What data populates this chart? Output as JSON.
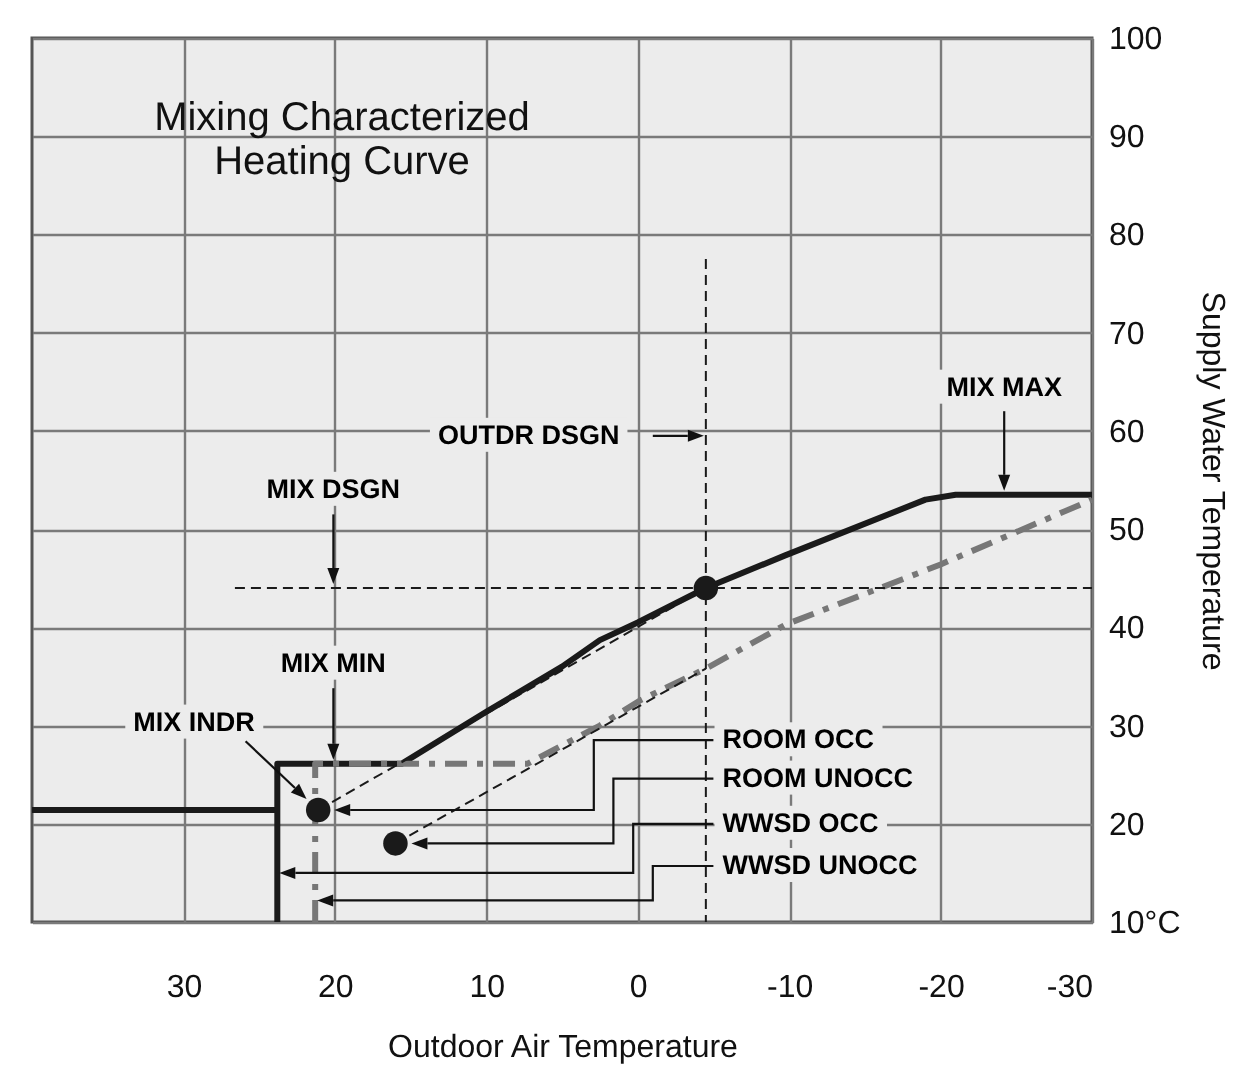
{
  "chart_data": {
    "type": "line",
    "title": "Mixing Characterized Heating Curve",
    "xlabel": "Outdoor Air Temperature",
    "ylabel": "Supply Water Temperature",
    "xlim": [
      40,
      -30
    ],
    "xticks": [
      30,
      20,
      10,
      0,
      -10,
      -20,
      -30
    ],
    "ylim": [
      10,
      100
    ],
    "yticks": [
      {
        "value": 10,
        "label": "10°C"
      },
      20,
      30,
      40,
      50,
      60,
      70,
      80,
      90,
      100
    ],
    "grid": true,
    "series": [
      {
        "color": "#1a1a1a",
        "line_style": "solid",
        "x": [
          40,
          23.8,
          23.8,
          23.8,
          15.6,
          10,
          5,
          2.5,
          0,
          -4.5,
          -9.7,
          -19,
          -21,
          -30
        ],
        "values": [
          21.4,
          21.4,
          10,
          26.1,
          26.1,
          31.4,
          36,
          38.7,
          40.5,
          44,
          47.3,
          53,
          53.5,
          53.5
        ]
      },
      {
        "color": "#777777",
        "line_style": "dashed",
        "x": [
          21.3,
          21.3,
          7.3,
          2.5,
          -0.2,
          -4.5,
          -9.8,
          -20,
          -30
        ],
        "values": [
          10,
          26.1,
          26.1,
          30,
          32.6,
          35.8,
          40.3,
          46.4,
          53
        ]
      },
      {
        "color": "#1a1a1a",
        "line_style": "dashed",
        "x": [
          21.1,
          -4.5
        ],
        "values": [
          21.4,
          44
        ]
      },
      {
        "color": "#1a1a1a",
        "line_style": "dashed",
        "x": [
          16,
          -4.5
        ],
        "values": [
          18,
          35.8
        ]
      },
      {
        "color": "#1a1a1a",
        "line_style": "dashed",
        "x": [
          26.6,
          -30
        ],
        "values": [
          44,
          44
        ]
      },
      {
        "color": "#1a1a1a",
        "line_style": "dashed",
        "x": [
          -4.5,
          -4.5
        ],
        "values": [
          77.5,
          10
        ]
      },
      {
        "type": "scatter",
        "marker": "circle",
        "color": "#1a1a1a",
        "x": [
          -4.5,
          21.1,
          16
        ],
        "values": [
          44,
          21.4,
          18
        ]
      }
    ],
    "annotations": [
      "MIX MAX",
      "OUTDR DSGN",
      "MIX DSGN",
      "MIX MIN",
      "MIX INDR",
      "ROOM OCC",
      "ROOM UNOCC",
      "WWSD OCC",
      "WWSD UNOCC"
    ]
  }
}
